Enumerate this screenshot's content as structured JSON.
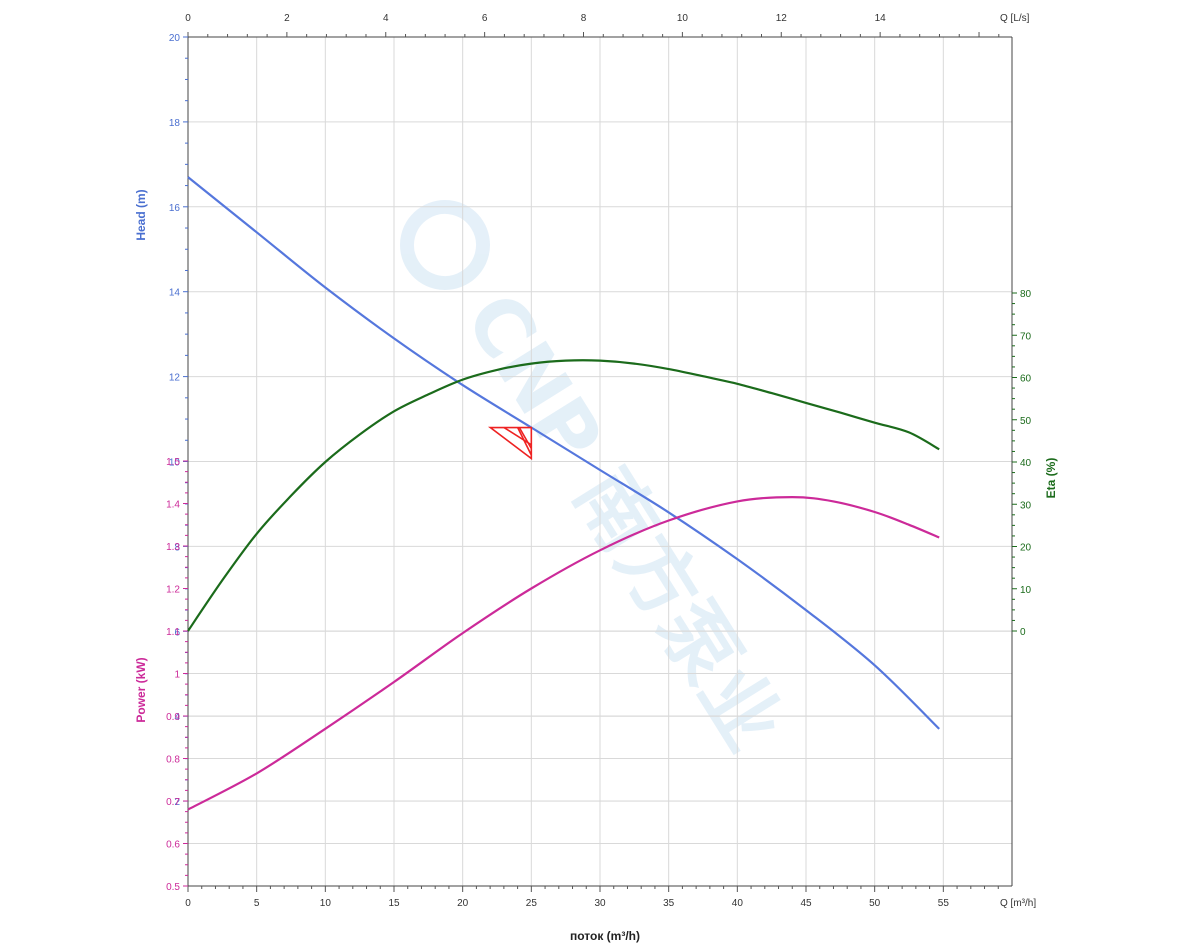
{
  "chart_data": {
    "type": "line",
    "x_bottom": {
      "label": "поток (m³/h)",
      "unit_label": "Q [m³/h]",
      "range": [
        0,
        60
      ],
      "ticks": [
        "0",
        "5",
        "10",
        "15",
        "20",
        "25",
        "30",
        "35",
        "40",
        "45",
        "50",
        "55"
      ]
    },
    "x_top": {
      "unit_label": "Q [L/s]",
      "range": [
        0,
        16.667
      ],
      "ticks": [
        "0",
        "2",
        "4",
        "6",
        "8",
        "10",
        "12",
        "14"
      ]
    },
    "head_axis": {
      "label": "Head (m)",
      "range": [
        0,
        20
      ],
      "ticks": [
        "2",
        "4",
        "6",
        "8",
        "10",
        "12",
        "14",
        "16",
        "18",
        "20"
      ]
    },
    "power_axis": {
      "label": "Power (kW)",
      "range": [
        0.5,
        1.5
      ],
      "ticks": [
        "0.5",
        "0.6",
        "0.7",
        "0.8",
        "0.9",
        "1",
        "1.1",
        "1.2",
        "1.3",
        "1.4",
        "1.5"
      ]
    },
    "eta_axis": {
      "label": "Eta (%)",
      "range": [
        0,
        80
      ],
      "ticks": [
        "0",
        "10",
        "20",
        "30",
        "40",
        "50",
        "60",
        "70",
        "80"
      ]
    },
    "series": [
      {
        "name": "Head",
        "axis": "head",
        "color": "#5577dd",
        "points": [
          [
            0,
            16.7
          ],
          [
            5,
            15.4
          ],
          [
            10,
            14.1
          ],
          [
            15,
            12.9
          ],
          [
            20,
            11.8
          ],
          [
            25,
            10.8
          ],
          [
            30,
            9.8
          ],
          [
            35,
            8.8
          ],
          [
            40,
            7.7
          ],
          [
            45,
            6.5
          ],
          [
            50,
            5.2
          ],
          [
            54.7,
            3.7
          ]
        ]
      },
      {
        "name": "Eta",
        "axis": "eta",
        "color": "#1b6b1b",
        "points": [
          [
            0,
            0
          ],
          [
            2.5,
            12
          ],
          [
            5,
            23
          ],
          [
            7.5,
            32
          ],
          [
            10,
            40
          ],
          [
            12.5,
            46.5
          ],
          [
            15,
            52
          ],
          [
            17.5,
            56
          ],
          [
            20,
            59.5
          ],
          [
            22.5,
            61.8
          ],
          [
            25,
            63.3
          ],
          [
            27.5,
            64
          ],
          [
            30,
            64
          ],
          [
            32.5,
            63.3
          ],
          [
            35,
            62
          ],
          [
            37.5,
            60.3
          ],
          [
            40,
            58.5
          ],
          [
            42.5,
            56.3
          ],
          [
            45,
            54
          ],
          [
            47.5,
            51.7
          ],
          [
            50,
            49.3
          ],
          [
            52.5,
            47
          ],
          [
            54.7,
            43
          ]
        ]
      },
      {
        "name": "Power",
        "axis": "power",
        "color": "#cc2a99",
        "points": [
          [
            0,
            0.68
          ],
          [
            5,
            0.765
          ],
          [
            10,
            0.87
          ],
          [
            15,
            0.98
          ],
          [
            20,
            1.095
          ],
          [
            25,
            1.2
          ],
          [
            30,
            1.29
          ],
          [
            35,
            1.36
          ],
          [
            40,
            1.405
          ],
          [
            44,
            1.415
          ],
          [
            47,
            1.405
          ],
          [
            50,
            1.38
          ],
          [
            52.5,
            1.35
          ],
          [
            54.7,
            1.32
          ]
        ]
      }
    ],
    "duty_point": {
      "flow": 25,
      "head": 10.8,
      "color": "#ee2222"
    },
    "watermark": "CNP 南方泵业",
    "colors": {
      "grid": "#d9d9d9",
      "head_axis": "#4a6fd0",
      "power_axis": "#cc2a99",
      "eta_axis": "#1b6b1b",
      "watermark": "#cfe4f4"
    }
  }
}
